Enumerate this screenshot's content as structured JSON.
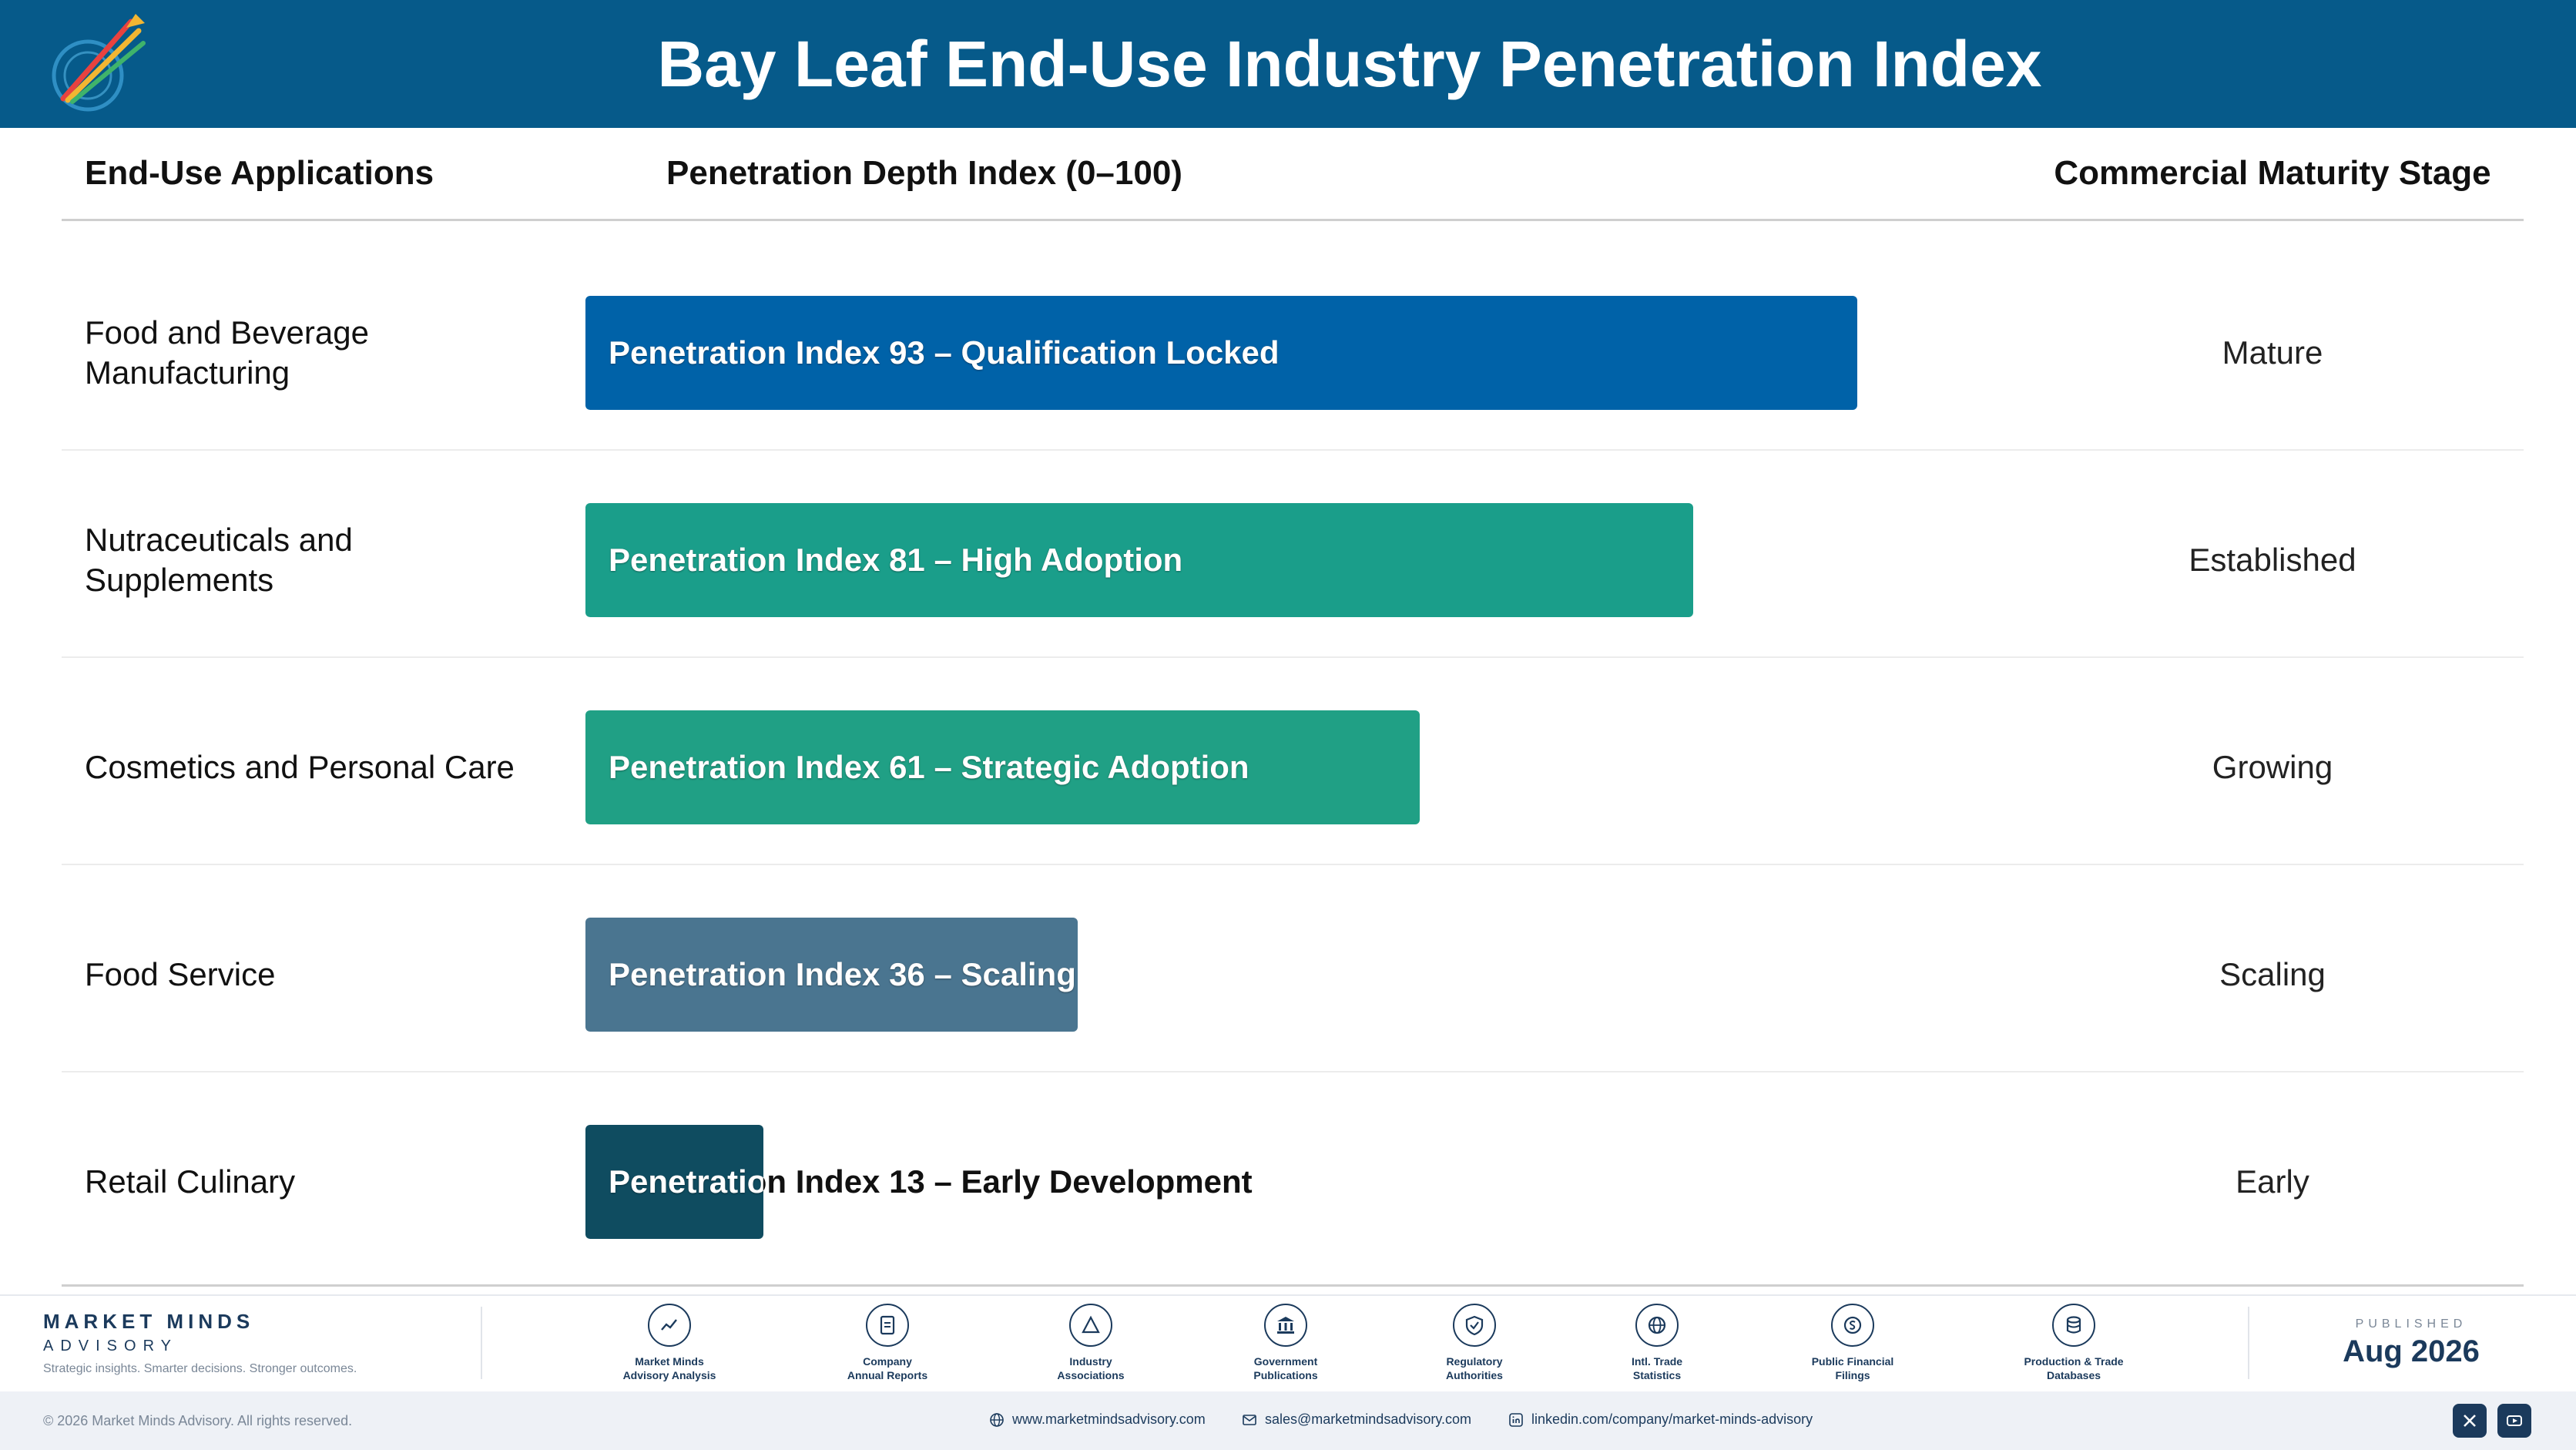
{
  "header": {
    "title": "Bay Leaf End-Use Industry Penetration Index",
    "logo_icon": "market-minds-logo-icon"
  },
  "columns": {
    "applications": "End-Use Applications",
    "index": "Penetration Depth Index (0–100)",
    "stage": "Commercial Maturity Stage"
  },
  "chart_data": {
    "type": "bar",
    "orientation": "horizontal",
    "xlim": [
      0,
      100
    ],
    "title": "Bay Leaf End-Use Industry Penetration Index",
    "categories": [
      "Food and Beverage Manufacturing",
      "Nutraceuticals and Supplements",
      "Cosmetics and Personal Care",
      "Food Service",
      "Retail Culinary"
    ],
    "values": [
      93,
      81,
      61,
      36,
      13
    ],
    "bar_labels": [
      "Penetration Index 93 – Qualification Locked",
      "Penetration Index 81 – High Adoption",
      "Penetration Index 61 – Strategic Adoption",
      "Penetration Index 36 – Scaling",
      "Penetration Index 13 – Early Development"
    ],
    "stages": [
      "Mature",
      "Established",
      "Growing",
      "Scaling",
      "Early"
    ],
    "colors": [
      "#0062a8",
      "#1a9e8a",
      "#20a085",
      "#4a7590",
      "#0f4c60"
    ]
  },
  "footer": {
    "brand_name": "MARKET MINDS",
    "brand_sub": "ADVISORY",
    "tagline": "Strategic insights. Smarter decisions. Stronger outcomes.",
    "sources": [
      {
        "icon": "trend-chart-icon",
        "line1": "Market Minds",
        "line2": "Advisory Analysis"
      },
      {
        "icon": "document-icon",
        "line1": "Company",
        "line2": "Annual Reports"
      },
      {
        "icon": "network-icon",
        "line1": "Industry",
        "line2": "Associations"
      },
      {
        "icon": "government-building-icon",
        "line1": "Government",
        "line2": "Publications"
      },
      {
        "icon": "shield-check-icon",
        "line1": "Regulatory",
        "line2": "Authorities"
      },
      {
        "icon": "globe-icon",
        "line1": "Intl. Trade",
        "line2": "Statistics"
      },
      {
        "icon": "coin-icon",
        "line1": "Public Financial",
        "line2": "Filings"
      },
      {
        "icon": "database-icon",
        "line1": "Production & Trade",
        "line2": "Databases"
      }
    ],
    "published_label": "PUBLISHED",
    "published_date": "Aug 2026",
    "copyright": "© 2026 Market Minds Advisory. All rights reserved.",
    "website": "www.marketmindsadvisory.com",
    "email": "sales@marketmindsadvisory.com",
    "linkedin": "linkedin.com/company/market-minds-advisory"
  }
}
